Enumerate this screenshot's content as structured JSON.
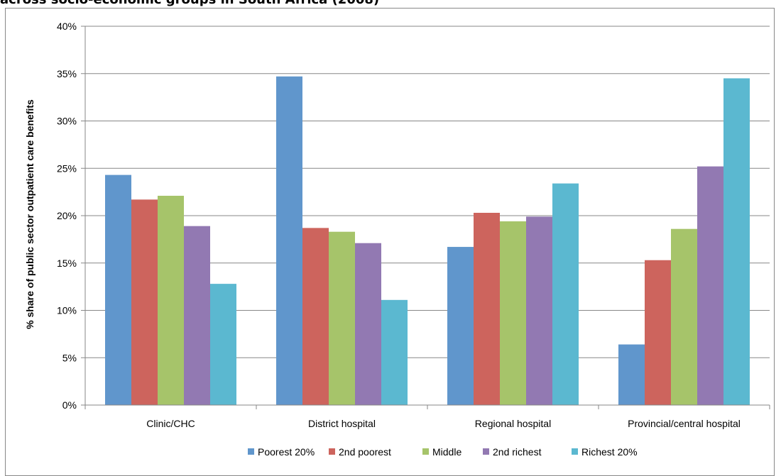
{
  "title": "across socio-economic groups in South Africa (2008)",
  "chart_data": {
    "type": "bar",
    "categories": [
      "Clinic/CHC",
      "District hospital",
      "Regional hospital",
      "Provincial/central hospital"
    ],
    "series": [
      {
        "name": "Poorest 20%",
        "color": "#6096cc",
        "values": [
          24.3,
          34.7,
          16.7,
          6.4
        ]
      },
      {
        "name": "2nd poorest",
        "color": "#cd645d",
        "values": [
          21.7,
          18.7,
          20.3,
          15.3
        ]
      },
      {
        "name": "Middle",
        "color": "#a6c46a",
        "values": [
          22.1,
          18.3,
          19.4,
          18.6
        ]
      },
      {
        "name": "2nd richest",
        "color": "#9279b2",
        "values": [
          18.9,
          17.1,
          19.9,
          25.2
        ]
      },
      {
        "name": "Richest 20%",
        "color": "#5bb8d0",
        "values": [
          12.8,
          11.1,
          23.4,
          34.5
        ]
      }
    ],
    "ylabel": "% share of public sector outpatient care benefits",
    "ylim": [
      0,
      40
    ],
    "yticks": [
      "0%",
      "5%",
      "10%",
      "15%",
      "20%",
      "25%",
      "30%",
      "35%",
      "40%"
    ],
    "grid": true,
    "legend_position": "bottom"
  }
}
